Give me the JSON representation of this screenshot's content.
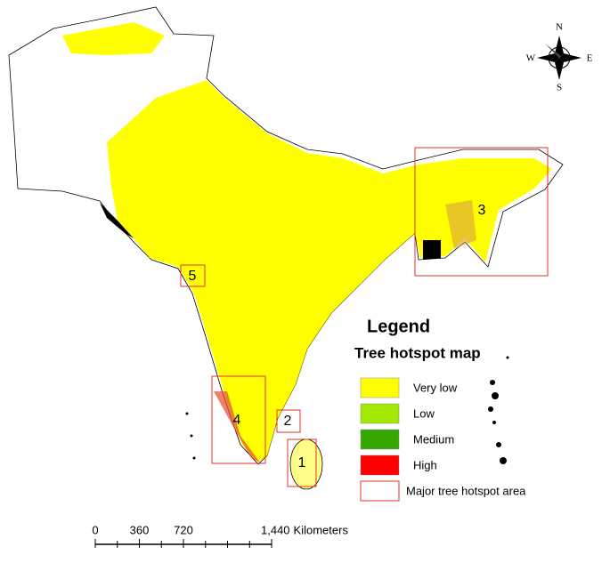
{
  "legend": {
    "title": "Legend",
    "subtitle": "Tree hotspot map",
    "items": [
      {
        "label": "Very low",
        "color": "#ffff00"
      },
      {
        "label": "Low",
        "color": "#a3e800"
      },
      {
        "label": "Medium",
        "color": "#38a800"
      },
      {
        "label": "High",
        "color": "#ff0000"
      }
    ],
    "area_label": "Major tree hotspot area",
    "area_color": "#e0302a"
  },
  "hotspots": [
    "1",
    "2",
    "3",
    "4",
    "5"
  ],
  "compass": {
    "n": "N",
    "s": "S",
    "e": "E",
    "w": "W"
  },
  "scale_bar": {
    "ticks": [
      0,
      360,
      720,
      {
        "value": 1440,
        "label": "1,440"
      }
    ],
    "max": 1440,
    "unit": "Kilometers"
  }
}
